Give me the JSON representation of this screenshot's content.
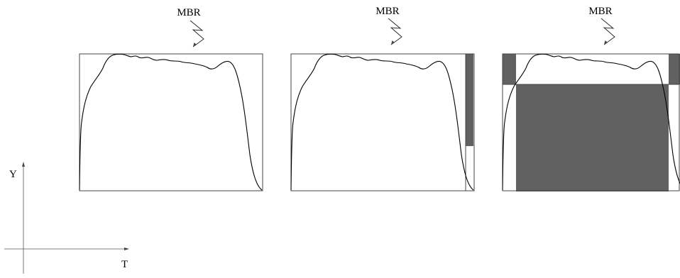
{
  "panels": [
    {
      "id": "panel-1",
      "label": "MBR",
      "shaded_regions": []
    },
    {
      "id": "panel-2",
      "label": "MBR",
      "shaded_regions": [
        "right-strip"
      ]
    },
    {
      "id": "panel-3",
      "label": "MBR",
      "shaded_regions": [
        "top-left-block",
        "top-right-block",
        "center-block"
      ]
    }
  ],
  "axes": {
    "y_label": "Y",
    "x_label": "T"
  },
  "colors": {
    "shade": "#616161",
    "curve": "#000000",
    "frame": "#444444"
  }
}
